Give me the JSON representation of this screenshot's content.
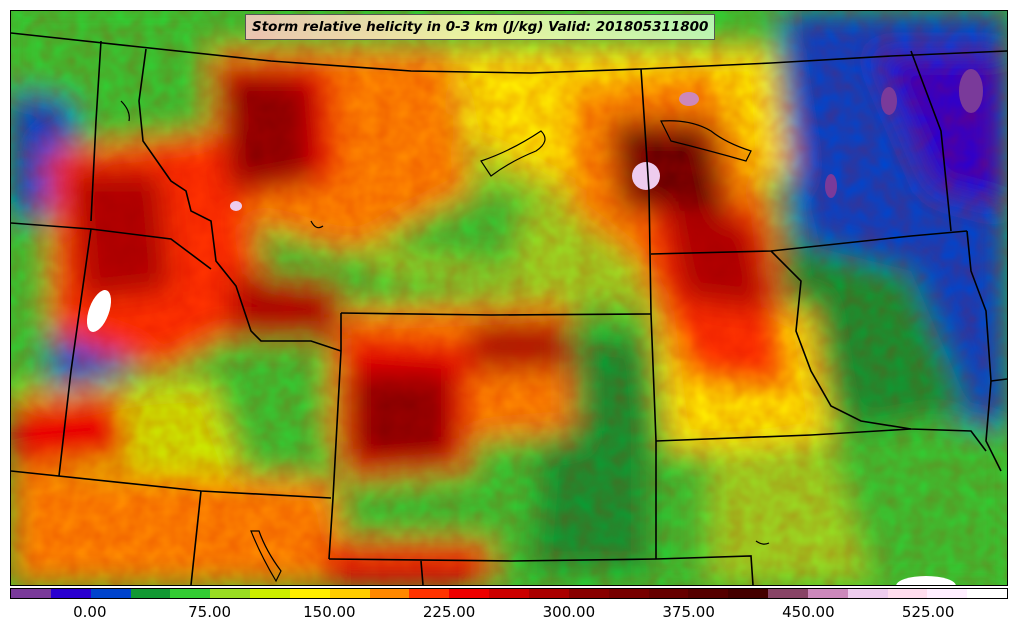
{
  "title": "Storm relative helicity in 0-3 km (J/kg) Valid: 201805311800",
  "colorbar": {
    "colors": [
      "#7a3a9a",
      "#2a00d0",
      "#0044cc",
      "#119933",
      "#33cc33",
      "#99dd22",
      "#ccee00",
      "#ffee00",
      "#ffcc00",
      "#ff8800",
      "#ff3300",
      "#ee0000",
      "#cc0000",
      "#aa0000",
      "#880000",
      "#770000",
      "#660000",
      "#550000",
      "#440000",
      "#884466",
      "#cc88bb",
      "#eeccee",
      "#ffddee",
      "#ffeeff",
      "#ffffff"
    ],
    "tick_labels": [
      "0.00",
      "75.00",
      "150.00",
      "225.00",
      "300.00",
      "375.00",
      "450.00",
      "525.00"
    ],
    "tick_values": [
      0,
      75,
      150,
      225,
      300,
      375,
      450,
      525
    ],
    "range": [
      -50,
      575
    ]
  }
}
